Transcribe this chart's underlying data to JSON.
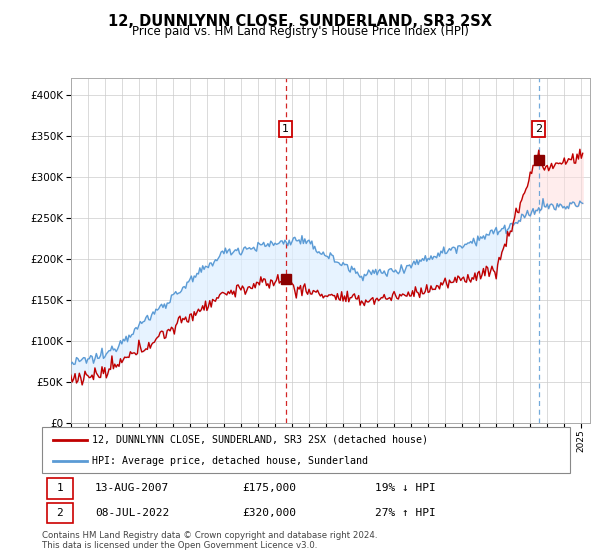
{
  "title": "12, DUNNLYNN CLOSE, SUNDERLAND, SR3 2SX",
  "subtitle": "Price paid vs. HM Land Registry's House Price Index (HPI)",
  "legend_line1": "12, DUNNLYNN CLOSE, SUNDERLAND, SR3 2SX (detached house)",
  "legend_line2": "HPI: Average price, detached house, Sunderland",
  "transaction1_date": "13-AUG-2007",
  "transaction1_price": 175000,
  "transaction1_note": "19% ↓ HPI",
  "transaction2_date": "08-JUL-2022",
  "transaction2_price": 320000,
  "transaction2_note": "27% ↑ HPI",
  "footer": "Contains HM Land Registry data © Crown copyright and database right 2024.\nThis data is licensed under the Open Government Licence v3.0.",
  "hpi_color": "#5b9bd5",
  "price_color": "#c00000",
  "fill_color": "#ddeeff",
  "marker_color": "#8b0000",
  "vline1_color": "#cc0000",
  "vline2_color": "#5b9bd5",
  "ylim": [
    0,
    420000
  ],
  "yticks": [
    0,
    50000,
    100000,
    150000,
    200000,
    250000,
    300000,
    350000,
    400000
  ],
  "start_year": 1995,
  "end_year": 2025,
  "t1_year": 2007.625,
  "t1_price": 175000,
  "t2_year": 2022.5,
  "t2_price": 320000
}
